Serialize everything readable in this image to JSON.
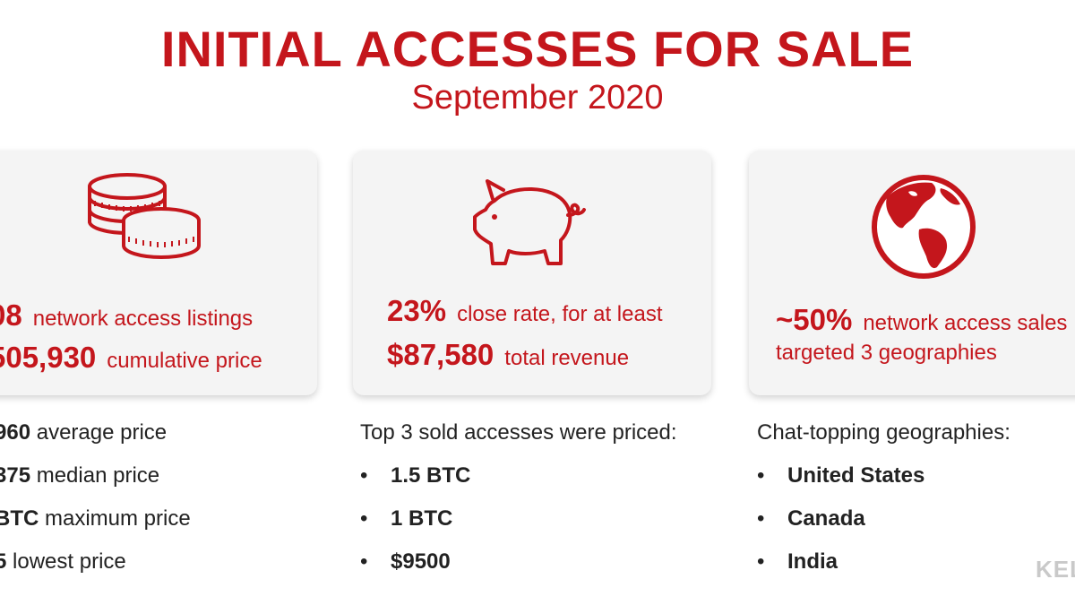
{
  "header": {
    "title": "INITIAL ACCESSES FOR SALE",
    "subtitle": "September 2020"
  },
  "cards": [
    {
      "icon": "coins-icon",
      "lines": [
        {
          "num": "08",
          "text": "network access listings"
        },
        {
          "num": "505,930",
          "text": "cumulative price"
        }
      ]
    },
    {
      "icon": "piggy-bank-icon",
      "lines": [
        {
          "num": "23%",
          "text": "close rate, for at least"
        },
        {
          "num": "$87,580",
          "text": "total  revenue"
        }
      ]
    },
    {
      "icon": "globe-icon",
      "lines": [
        {
          "num": "~50%",
          "text": "network access sales"
        },
        {
          "num": "",
          "text": "targeted 3 geographies"
        }
      ]
    }
  ],
  "details": {
    "col1": [
      {
        "value": "960",
        "label": "average price"
      },
      {
        "value": "375",
        "label": "median price"
      },
      {
        "value": "BTC",
        "label": "maximum price"
      },
      {
        "value": "5",
        "label": "lowest price"
      }
    ],
    "col2": {
      "intro": "Top 3 sold accesses were priced:",
      "items": [
        "1.5 BTC",
        "1 BTC",
        "$9500"
      ]
    },
    "col3": {
      "intro": "Chat-topping geographies:",
      "items": [
        "United States",
        "Canada",
        "India"
      ]
    }
  },
  "bullet_char": "•",
  "watermark": "KEL",
  "colors": {
    "accent": "#c4161c",
    "card_bg": "#f4f4f4"
  }
}
